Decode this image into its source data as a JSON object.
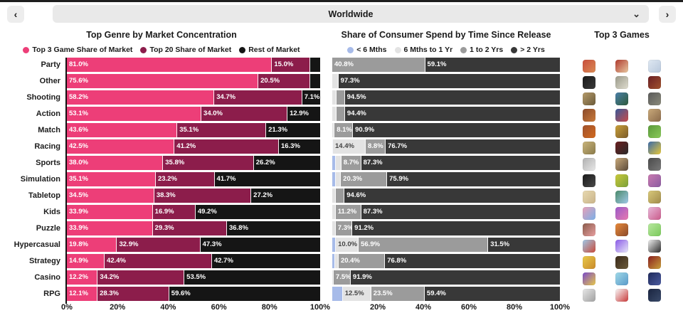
{
  "header": {
    "title": "Worldwide",
    "prev_icon": "‹",
    "next_icon": "›",
    "dropdown_icon": "⌄"
  },
  "top_games": {
    "title": "Top 3 Games",
    "icon_rows": [
      [
        [
          "#c94f3d",
          "#d98a54"
        ],
        [
          "#b03a2e",
          "#e8c7a0"
        ],
        [
          "#dfe8f2",
          "#b8c8dc"
        ]
      ],
      [
        [
          "#1a1a1a",
          "#3a3a3a"
        ],
        [
          "#9a9a8a",
          "#e0ddd0"
        ],
        [
          "#6b1f24",
          "#a0522d"
        ]
      ],
      [
        [
          "#b59a6a",
          "#6b5b3a"
        ],
        [
          "#4a7fa8",
          "#2e5a3a"
        ],
        [
          "#5a5a5a",
          "#8a8a7a"
        ]
      ],
      [
        [
          "#8a4a2a",
          "#c97a3a"
        ],
        [
          "#3a5a9a",
          "#c94a4a"
        ],
        [
          "#c9a97a",
          "#8a6a4a"
        ]
      ],
      [
        [
          "#a0522d",
          "#d2691e"
        ],
        [
          "#c9a03a",
          "#7a5a2a"
        ],
        [
          "#5a9a3a",
          "#8ac95a"
        ]
      ],
      [
        [
          "#c9b47a",
          "#8a7a4a"
        ],
        [
          "#6b1f1f",
          "#2a2a2a"
        ],
        [
          "#3a6aaa",
          "#e8c93a"
        ]
      ],
      [
        [
          "#b0b0b0",
          "#e8e8e8"
        ],
        [
          "#c9a97a",
          "#5a4a3a"
        ],
        [
          "#4a4a4a",
          "#7a7a7a"
        ]
      ],
      [
        [
          "#1a1a1a",
          "#4a4a4a"
        ],
        [
          "#c9c93a",
          "#7aa03a"
        ],
        [
          "#c97ab0",
          "#8a5aa0"
        ]
      ],
      [
        [
          "#e8d9b0",
          "#c9b48a"
        ],
        [
          "#4a8a6a",
          "#a0c9e8"
        ],
        [
          "#d9c97a",
          "#a08a4a"
        ]
      ],
      [
        [
          "#e8a0b8",
          "#7ab0e8"
        ],
        [
          "#9a5ac9",
          "#e87ab0"
        ],
        [
          "#e8b8d9",
          "#c95a8a"
        ]
      ],
      [
        [
          "#8a5a4a",
          "#e8a0a0"
        ],
        [
          "#e88a3a",
          "#8a4a2a"
        ],
        [
          "#b8e8a0",
          "#7ac95a"
        ]
      ],
      [
        [
          "#a0c9e8",
          "#c94a3a"
        ],
        [
          "#8a5ae8",
          "#e8e8f8"
        ],
        [
          "#f0f0f0",
          "#2a2a2a"
        ]
      ],
      [
        [
          "#e8c94a",
          "#c98a2a"
        ],
        [
          "#3a2a1a",
          "#6a5a3a"
        ],
        [
          "#8a1f1f",
          "#c9a03a"
        ]
      ],
      [
        [
          "#7a4ac9",
          "#e8c94a"
        ],
        [
          "#a0d9e8",
          "#5a9ac9"
        ],
        [
          "#1f2a5a",
          "#4a5aa0"
        ]
      ],
      [
        [
          "#e8e8e8",
          "#a0a0a0"
        ],
        [
          "#f8f8f8",
          "#c93a3a"
        ],
        [
          "#1a2540",
          "#3a4a6a"
        ]
      ]
    ]
  },
  "chart_data": [
    {
      "type": "bar",
      "orientation": "horizontal",
      "stacked": true,
      "title": "Top Genre by Market Concentration",
      "legend_position": "top",
      "grid": false,
      "xlim": [
        0,
        100
      ],
      "xticks": [
        "0%",
        "20%",
        "40%",
        "60%",
        "80%",
        "100%"
      ],
      "label_min_value": 6.5,
      "categories": [
        "Party",
        "Other",
        "Shooting",
        "Action",
        "Match",
        "Racing",
        "Sports",
        "Simulation",
        "Tabletop",
        "Kids",
        "Puzzle",
        "Hypercasual",
        "Strategy",
        "Casino",
        "RPG"
      ],
      "series": [
        {
          "name": "Top 3 Game Share of Market",
          "color": "#ED3E78",
          "values": [
            81.0,
            75.6,
            58.2,
            53.1,
            43.6,
            42.5,
            38.0,
            35.1,
            34.5,
            33.9,
            33.9,
            19.8,
            14.9,
            12.2,
            12.1
          ]
        },
        {
          "name": "Top 20 Share of Market",
          "color": "#8C1D4B",
          "values": [
            15.0,
            20.5,
            34.7,
            34.0,
            35.1,
            41.2,
            35.8,
            23.2,
            38.3,
            16.9,
            29.3,
            32.9,
            42.4,
            34.2,
            28.3
          ]
        },
        {
          "name": "Rest of Market",
          "color": "#151515",
          "values": [
            4.0,
            3.9,
            7.1,
            12.9,
            21.3,
            16.3,
            26.2,
            41.7,
            27.2,
            49.2,
            36.8,
            47.3,
            42.7,
            53.5,
            59.6
          ]
        }
      ]
    },
    {
      "type": "bar",
      "orientation": "horizontal",
      "stacked": true,
      "title": "Share of Consumer Spend by Time Since Release",
      "legend_position": "top",
      "grid": false,
      "xlim": [
        0,
        100
      ],
      "xticks": [
        "20%",
        "40%",
        "60%",
        "80%",
        "100%"
      ],
      "label_min_value": 6.5,
      "categories": [
        "Party",
        "Other",
        "Shooting",
        "Action",
        "Match",
        "Racing",
        "Sports",
        "Simulation",
        "Tabletop",
        "Kids",
        "Puzzle",
        "Hypercasual",
        "Strategy",
        "Casino",
        "RPG"
      ],
      "series": [
        {
          "name": "< 6 Mths",
          "color": "#A7BBE9",
          "label_color": "#444444",
          "values": [
            0,
            0,
            0,
            0,
            0,
            0.1,
            1.5,
            1.5,
            0,
            0,
            0,
            1.6,
            1.4,
            0,
            4.6
          ]
        },
        {
          "name": "6 Mths to 1 Yr",
          "color": "#E3E3E3",
          "label_color": "#444444",
          "values": [
            0,
            2.7,
            1.8,
            1.8,
            1.0,
            14.4,
            2.5,
            2.3,
            1.7,
            1.5,
            1.5,
            10.0,
            1.4,
            0.6,
            12.5
          ]
        },
        {
          "name": "1 to 2 Yrs",
          "color": "#9B9B9B",
          "values": [
            40.8,
            0,
            3.7,
            3.8,
            8.1,
            8.8,
            8.7,
            20.3,
            3.7,
            11.2,
            7.3,
            56.9,
            20.4,
            7.5,
            23.5
          ]
        },
        {
          "name": "> 2 Yrs",
          "color": "#383838",
          "values": [
            59.1,
            97.3,
            94.5,
            94.4,
            90.9,
            76.7,
            87.3,
            75.9,
            94.6,
            87.3,
            91.2,
            31.5,
            76.8,
            91.9,
            59.4
          ]
        }
      ]
    }
  ]
}
